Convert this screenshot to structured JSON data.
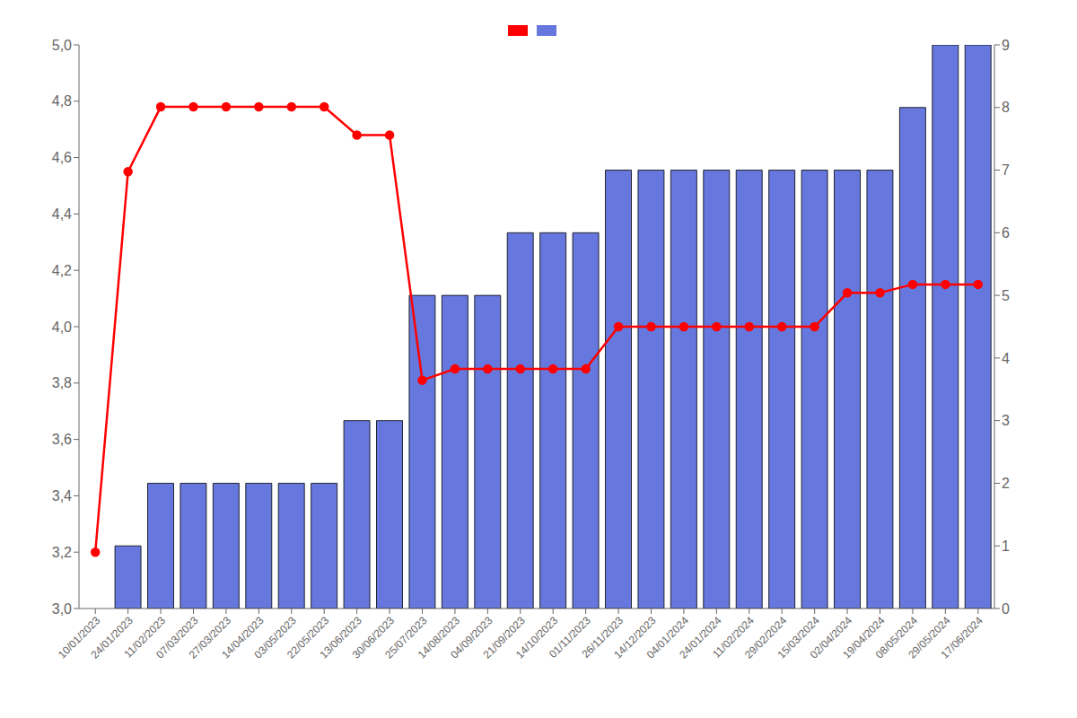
{
  "chart_data": {
    "type": "bar",
    "categories": [
      "10/01/2023",
      "24/01/2023",
      "11/02/2023",
      "07/03/2023",
      "27/03/2023",
      "14/04/2023",
      "03/05/2023",
      "22/05/2023",
      "13/06/2023",
      "30/06/2023",
      "25/07/2023",
      "14/08/2023",
      "04/09/2023",
      "21/09/2023",
      "14/10/2023",
      "01/11/2023",
      "26/11/2023",
      "14/12/2023",
      "04/01/2024",
      "24/01/2024",
      "11/02/2024",
      "29/02/2024",
      "15/03/2024",
      "02/04/2024",
      "19/04/2024",
      "08/05/2024",
      "29/05/2024",
      "17/06/2024"
    ],
    "series": [
      {
        "type": "line",
        "color": "#ff0000",
        "marker": "circle",
        "values": [
          3.2,
          4.55,
          4.78,
          4.78,
          4.78,
          4.78,
          4.78,
          4.78,
          4.68,
          4.68,
          3.81,
          3.85,
          3.85,
          3.85,
          3.85,
          3.85,
          4.0,
          4.0,
          4.0,
          4.0,
          4.0,
          4.0,
          4.0,
          4.12,
          4.12,
          4.15,
          4.15,
          4.15
        ]
      },
      {
        "type": "bar",
        "color": "#6677dd",
        "axis": "y2",
        "values": [
          0,
          1,
          2,
          2,
          2,
          2,
          2,
          2,
          3,
          3,
          5,
          5,
          5,
          6,
          6,
          6,
          7,
          7,
          7,
          7,
          7,
          7,
          7,
          7,
          7,
          8,
          9,
          9
        ]
      }
    ],
    "ylim": [
      3.0,
      5.0
    ],
    "yticks": [
      {
        "value": 3.0,
        "label": "3,0"
      },
      {
        "value": 3.2,
        "label": "3,2"
      },
      {
        "value": 3.4,
        "label": "3,4"
      },
      {
        "value": 3.6,
        "label": "3,6"
      },
      {
        "value": 3.8,
        "label": "3,8"
      },
      {
        "value": 4.0,
        "label": "4,0"
      },
      {
        "value": 4.2,
        "label": "4,2"
      },
      {
        "value": 4.4,
        "label": "4,4"
      },
      {
        "value": 4.6,
        "label": "4,6"
      },
      {
        "value": 4.8,
        "label": "4,8"
      },
      {
        "value": 5.0,
        "label": "5,0"
      }
    ],
    "y2lim": [
      0,
      9
    ],
    "y2ticks": [
      0,
      1,
      2,
      3,
      4,
      5,
      6,
      7,
      8,
      9
    ],
    "grid": false,
    "legend": "top"
  }
}
